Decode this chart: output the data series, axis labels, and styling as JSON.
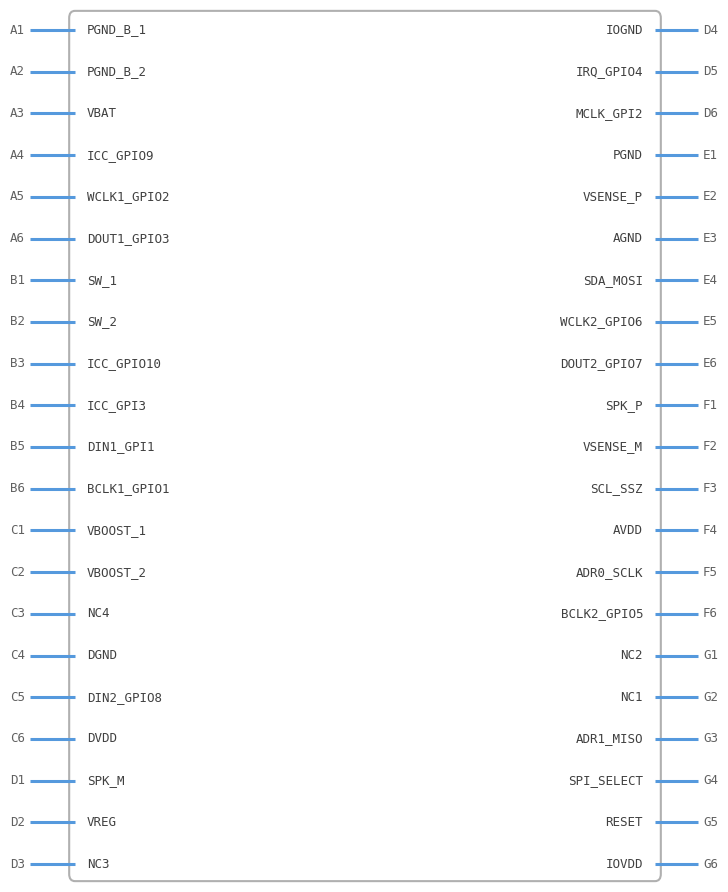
{
  "background_color": "#ffffff",
  "box_color": "#b0b0b0",
  "line_color": "#5599dd",
  "text_color": "#606060",
  "pin_label_color": "#404040",
  "left_pins": [
    {
      "label": "A1",
      "signal": "PGND_B_1"
    },
    {
      "label": "A2",
      "signal": "PGND_B_2"
    },
    {
      "label": "A3",
      "signal": "VBAT"
    },
    {
      "label": "A4",
      "signal": "ICC_GPIO9"
    },
    {
      "label": "A5",
      "signal": "WCLK1_GPIO2"
    },
    {
      "label": "A6",
      "signal": "DOUT1_GPIO3"
    },
    {
      "label": "B1",
      "signal": "SW_1"
    },
    {
      "label": "B2",
      "signal": "SW_2"
    },
    {
      "label": "B3",
      "signal": "ICC_GPIO10"
    },
    {
      "label": "B4",
      "signal": "ICC_GPI3"
    },
    {
      "label": "B5",
      "signal": "DIN1_GPI1"
    },
    {
      "label": "B6",
      "signal": "BCLK1_GPIO1"
    },
    {
      "label": "C1",
      "signal": "VBOOST_1"
    },
    {
      "label": "C2",
      "signal": "VBOOST_2"
    },
    {
      "label": "C3",
      "signal": "NC4"
    },
    {
      "label": "C4",
      "signal": "DGND"
    },
    {
      "label": "C5",
      "signal": "DIN2_GPIO8"
    },
    {
      "label": "C6",
      "signal": "DVDD"
    },
    {
      "label": "D1",
      "signal": "SPK_M"
    },
    {
      "label": "D2",
      "signal": "VREG"
    },
    {
      "label": "D3",
      "signal": "NC3"
    }
  ],
  "right_pins": [
    {
      "label": "D4",
      "signal": "IOGND"
    },
    {
      "label": "D5",
      "signal": "IRQ_GPIO4"
    },
    {
      "label": "D6",
      "signal": "MCLK_GPI2"
    },
    {
      "label": "E1",
      "signal": "PGND"
    },
    {
      "label": "E2",
      "signal": "VSENSE_P"
    },
    {
      "label": "E3",
      "signal": "AGND"
    },
    {
      "label": "E4",
      "signal": "SDA_MOSI"
    },
    {
      "label": "E5",
      "signal": "WCLK2_GPIO6"
    },
    {
      "label": "E6",
      "signal": "DOUT2_GPIO7"
    },
    {
      "label": "F1",
      "signal": "SPK_P"
    },
    {
      "label": "F2",
      "signal": "VSENSE_M"
    },
    {
      "label": "F3",
      "signal": "SCL_SSZ"
    },
    {
      "label": "F4",
      "signal": "AVDD"
    },
    {
      "label": "F5",
      "signal": "ADR0_SCLK"
    },
    {
      "label": "F6",
      "signal": "BCLK2_GPIO5"
    },
    {
      "label": "G1",
      "signal": "NC2"
    },
    {
      "label": "G2",
      "signal": "NC1"
    },
    {
      "label": "G3",
      "signal": "ADR1_MISO"
    },
    {
      "label": "G4",
      "signal": "SPI_SELECT"
    },
    {
      "label": "G5",
      "signal": "RESET"
    },
    {
      "label": "G6",
      "signal": "IOVDD"
    }
  ]
}
